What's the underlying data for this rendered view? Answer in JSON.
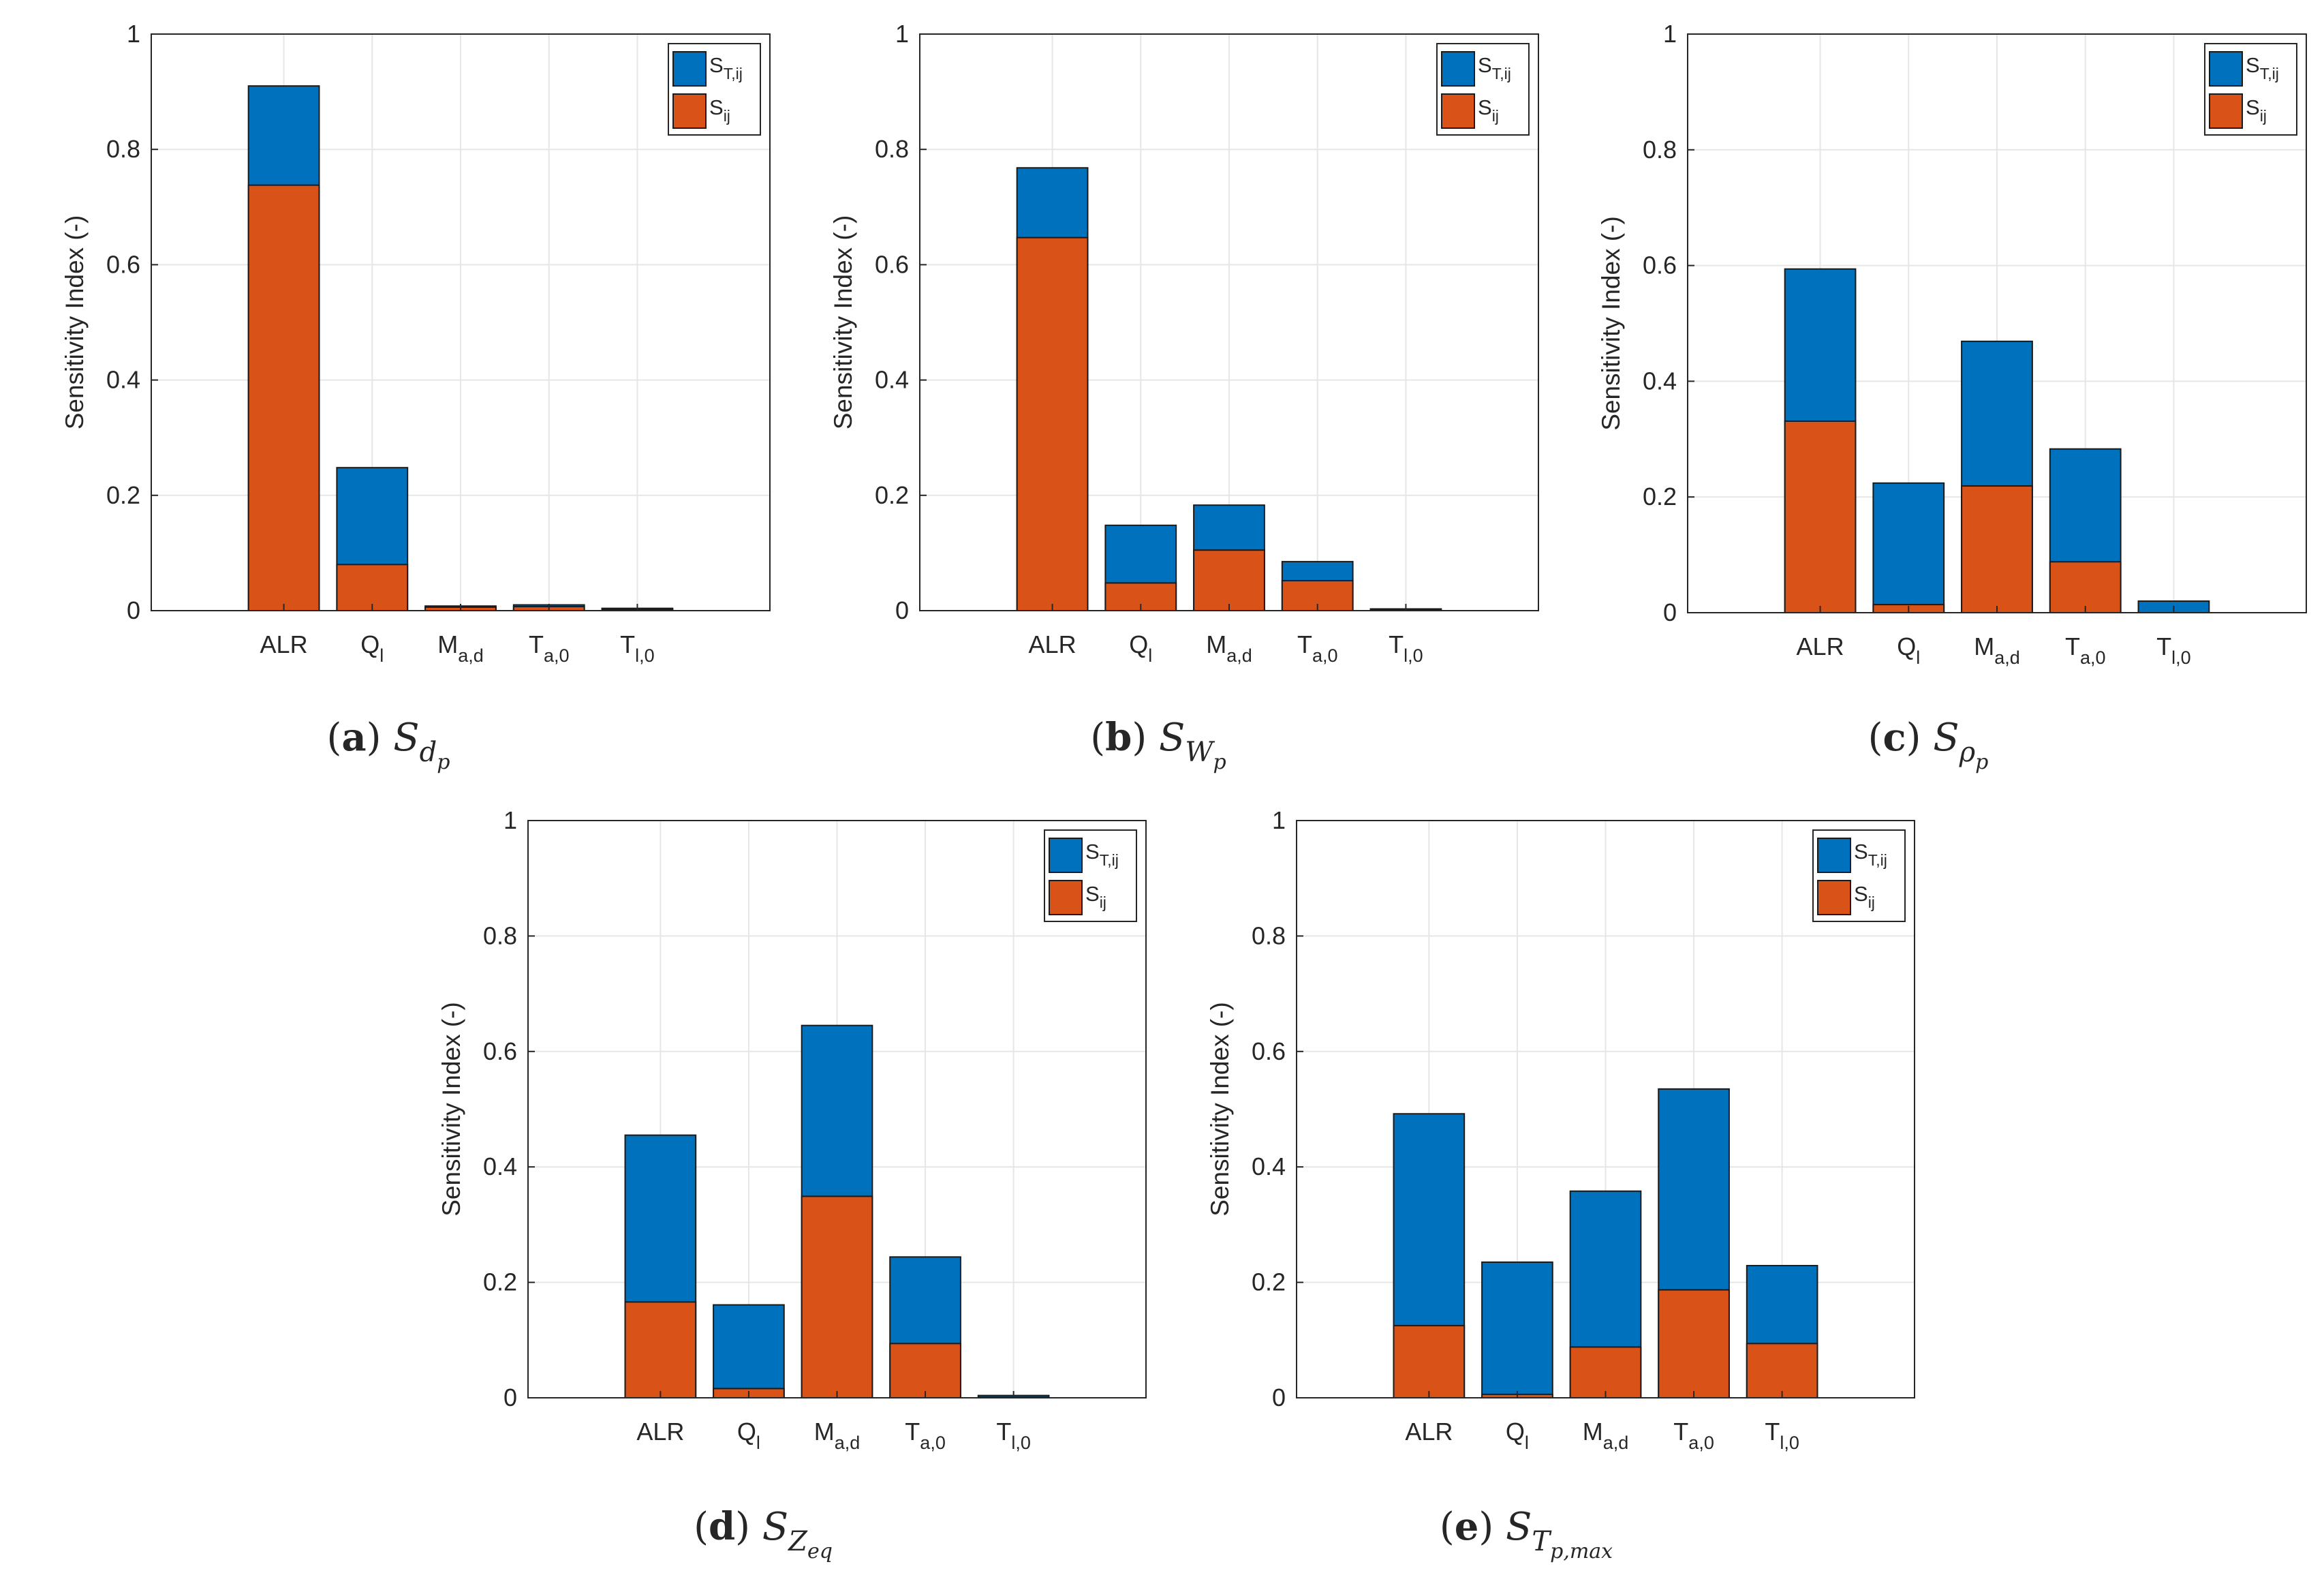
{
  "colors": {
    "total": "#0072BD",
    "first": "#D95319",
    "grid": "#e6e6e6",
    "axis": "#262626"
  },
  "chart_data": [
    {
      "type": "bar",
      "stacked": "overlay",
      "panel": "a",
      "caption": {
        "letter": "a",
        "symbol": "S",
        "sub": "d",
        "subsub": "p"
      },
      "categories": [
        {
          "base": "ALR",
          "sub": ""
        },
        {
          "base": "Q",
          "sub": "l"
        },
        {
          "base": "M",
          "sub": "a,d"
        },
        {
          "base": "T",
          "sub": "a,0"
        },
        {
          "base": "T",
          "sub": "l,0"
        }
      ],
      "series": [
        {
          "name": "S_T,ij",
          "label": {
            "base": "S",
            "sub": "T,ij"
          },
          "values": [
            0.91,
            0.248,
            0.008,
            0.01,
            0.004
          ]
        },
        {
          "name": "S_ij",
          "label": {
            "base": "S",
            "sub": "ij"
          },
          "values": [
            0.738,
            0.08,
            0.006,
            0.007,
            0.002
          ]
        }
      ],
      "ylabel": "Sensitivity Index (-)",
      "yticks": [
        "0",
        "0.2",
        "0.4",
        "0.6",
        "0.8",
        "1"
      ],
      "ylim": [
        0,
        1
      ],
      "grid": true,
      "legend": "top-right"
    },
    {
      "type": "bar",
      "stacked": "overlay",
      "panel": "b",
      "caption": {
        "letter": "b",
        "symbol": "S",
        "sub": "W",
        "subsub": "p"
      },
      "categories": [
        {
          "base": "ALR",
          "sub": ""
        },
        {
          "base": "Q",
          "sub": "l"
        },
        {
          "base": "M",
          "sub": "a,d"
        },
        {
          "base": "T",
          "sub": "a,0"
        },
        {
          "base": "T",
          "sub": "l,0"
        }
      ],
      "series": [
        {
          "name": "S_T,ij",
          "label": {
            "base": "S",
            "sub": "T,ij"
          },
          "values": [
            0.768,
            0.148,
            0.183,
            0.085,
            0.003
          ]
        },
        {
          "name": "S_ij",
          "label": {
            "base": "S",
            "sub": "ij"
          },
          "values": [
            0.647,
            0.048,
            0.105,
            0.052,
            0.001
          ]
        }
      ],
      "ylabel": "Sensitivity Index (-)",
      "yticks": [
        "0",
        "0.2",
        "0.4",
        "0.6",
        "0.8",
        "1"
      ],
      "ylim": [
        0,
        1
      ],
      "grid": true,
      "legend": "top-right"
    },
    {
      "type": "bar",
      "stacked": "overlay",
      "panel": "c",
      "caption": {
        "letter": "c",
        "symbol": "S",
        "sub": "ρ",
        "subsub": "p"
      },
      "categories": [
        {
          "base": "ALR",
          "sub": ""
        },
        {
          "base": "Q",
          "sub": "l"
        },
        {
          "base": "M",
          "sub": "a,d"
        },
        {
          "base": "T",
          "sub": "a,0"
        },
        {
          "base": "T",
          "sub": "l,0"
        }
      ],
      "series": [
        {
          "name": "S_T,ij",
          "label": {
            "base": "S",
            "sub": "T,ij"
          },
          "values": [
            0.594,
            0.224,
            0.469,
            0.283,
            0.02
          ]
        },
        {
          "name": "S_ij",
          "label": {
            "base": "S",
            "sub": "ij"
          },
          "values": [
            0.331,
            0.014,
            0.219,
            0.088,
            0.0
          ]
        }
      ],
      "ylabel": "Sensitivity Index (-)",
      "yticks": [
        "0",
        "0.2",
        "0.4",
        "0.6",
        "0.8",
        "1"
      ],
      "ylim": [
        0,
        1
      ],
      "grid": true,
      "legend": "top-right"
    },
    {
      "type": "bar",
      "stacked": "overlay",
      "panel": "d",
      "caption": {
        "letter": "d",
        "symbol": "S",
        "sub": "Z",
        "subsub": "eq"
      },
      "categories": [
        {
          "base": "ALR",
          "sub": ""
        },
        {
          "base": "Q",
          "sub": "l"
        },
        {
          "base": "M",
          "sub": "a,d"
        },
        {
          "base": "T",
          "sub": "a,0"
        },
        {
          "base": "T",
          "sub": "l,0"
        }
      ],
      "series": [
        {
          "name": "S_T,ij",
          "label": {
            "base": "S",
            "sub": "T,ij"
          },
          "values": [
            0.455,
            0.161,
            0.645,
            0.244,
            0.004
          ]
        },
        {
          "name": "S_ij",
          "label": {
            "base": "S",
            "sub": "ij"
          },
          "values": [
            0.166,
            0.016,
            0.349,
            0.094,
            0.001
          ]
        }
      ],
      "ylabel": "Sensitivity Index (-)",
      "yticks": [
        "0",
        "0.2",
        "0.4",
        "0.6",
        "0.8",
        "1"
      ],
      "ylim": [
        0,
        1
      ],
      "grid": true,
      "legend": "top-right"
    },
    {
      "type": "bar",
      "stacked": "overlay",
      "panel": "e",
      "caption": {
        "letter": "e",
        "symbol": "S",
        "sub": "T",
        "subsub": "p,max"
      },
      "categories": [
        {
          "base": "ALR",
          "sub": ""
        },
        {
          "base": "Q",
          "sub": "l"
        },
        {
          "base": "M",
          "sub": "a,d"
        },
        {
          "base": "T",
          "sub": "a,0"
        },
        {
          "base": "T",
          "sub": "l,0"
        }
      ],
      "series": [
        {
          "name": "S_T,ij",
          "label": {
            "base": "S",
            "sub": "T,ij"
          },
          "values": [
            0.492,
            0.235,
            0.358,
            0.535,
            0.229
          ]
        },
        {
          "name": "S_ij",
          "label": {
            "base": "S",
            "sub": "ij"
          },
          "values": [
            0.125,
            0.006,
            0.088,
            0.187,
            0.094
          ]
        }
      ],
      "ylabel": "Sensitivity Index (-)",
      "yticks": [
        "0",
        "0.2",
        "0.4",
        "0.6",
        "0.8",
        "1"
      ],
      "ylim": [
        0,
        1
      ],
      "grid": true,
      "legend": "top-right"
    }
  ]
}
